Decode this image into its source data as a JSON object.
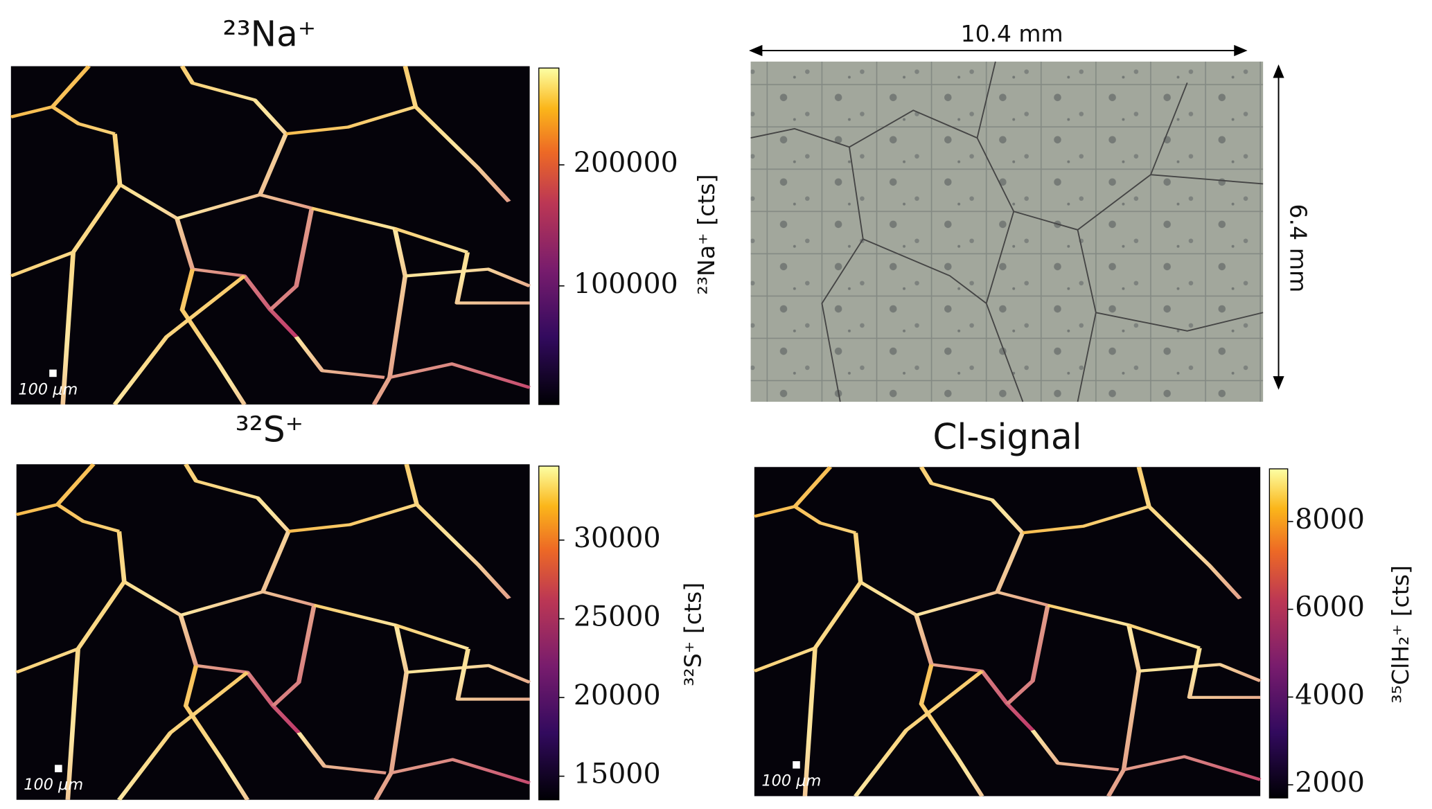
{
  "chart_data": [
    {
      "type": "heatmap",
      "title": "²³Na⁺",
      "colorbar_label": "²³Na⁺  [cts]",
      "clim": [
        2000,
        280000
      ],
      "cticks": [
        100000,
        200000
      ],
      "scale_bar": "100 μm",
      "colormap": "inferno"
    },
    {
      "type": "heatmap",
      "title": "³²S⁺",
      "colorbar_label": "³²S⁺  [cts]",
      "clim": [
        13500,
        34700
      ],
      "cticks": [
        15000,
        20000,
        25000,
        30000
      ],
      "scale_bar": "100 μm",
      "colormap": "inferno"
    },
    {
      "type": "heatmap",
      "title": "Cl-signal",
      "colorbar_label": "³⁵ClH₂⁺ [cts]",
      "clim": [
        1700,
        9200
      ],
      "cticks": [
        2000,
        4000,
        6000,
        8000
      ],
      "scale_bar": "100 μm",
      "colormap": "inferno"
    }
  ],
  "micrograph": {
    "width_label": "10.4 mm",
    "height_label": "6.4 mm"
  }
}
